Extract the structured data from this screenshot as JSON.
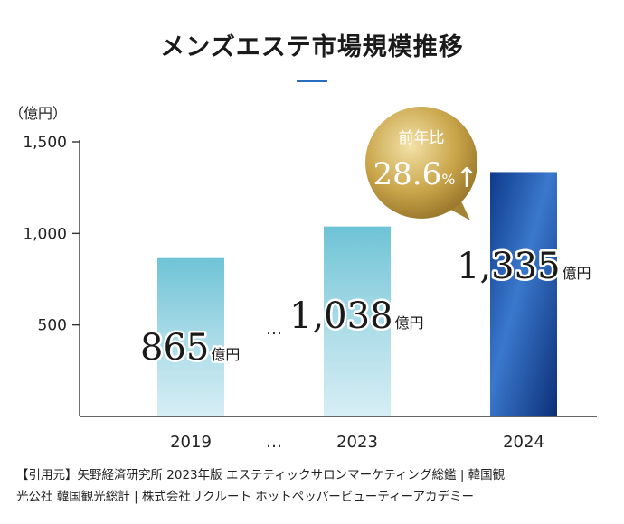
{
  "chart_data": {
    "type": "bar",
    "title": "メンズエステ市場規模推移",
    "ylabel": "（億円）",
    "categories": [
      "2019",
      "2023",
      "2024"
    ],
    "values": [
      865,
      1038,
      1335
    ],
    "value_unit": "億円",
    "value_labels": [
      "865",
      "1,038",
      "1,335"
    ],
    "ylim": [
      0,
      1500
    ],
    "yticks": [
      500,
      1000,
      1500
    ],
    "ytick_labels": [
      "500",
      "1,000",
      "1,500"
    ],
    "gap_marker": "…",
    "callout": {
      "label": "前年比",
      "value": "28.6",
      "unit": "%",
      "arrow": "↑"
    },
    "colors": {
      "bar_light_top": "#6ec3d6",
      "bar_light_bottom": "#d7eef5",
      "bar_dark_top": "#0e3a8a",
      "bar_dark_bottom": "#2a5fb8",
      "gold": "#b9963d",
      "accent": "#2a6cc0"
    }
  },
  "source_lines": [
    "【引用元】矢野経済研究所 2023年版 エステティックサロンマーケティング総鑑 | 韓国観",
    "光公社 韓国観光総計 | 株式会社リクルート ホットペッパービューティーアカデミー"
  ]
}
